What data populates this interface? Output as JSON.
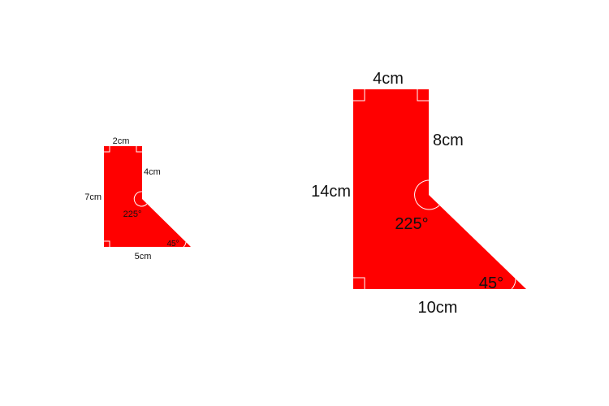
{
  "colors": {
    "shape_fill": "#ff0000",
    "marker_stroke": "#ffffff",
    "text": "#111111",
    "background": "#ffffff"
  },
  "small_shape": {
    "top": "2cm",
    "right_upper": "4cm",
    "left": "7cm",
    "bottom": "5cm",
    "reflex_angle": "225°",
    "acute_angle": "45°"
  },
  "large_shape": {
    "top": "4cm",
    "right_upper": "8cm",
    "left": "14cm",
    "bottom": "10cm",
    "reflex_angle": "225°",
    "acute_angle": "45°"
  }
}
